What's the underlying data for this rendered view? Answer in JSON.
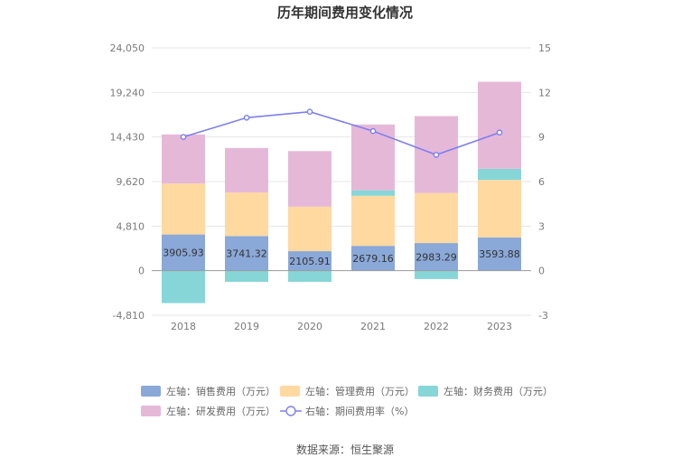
{
  "chart_data": {
    "type": "bar",
    "title": "历年期间费用变化情况",
    "categories": [
      "2018",
      "2019",
      "2020",
      "2021",
      "2022",
      "2023"
    ],
    "series": [
      {
        "name": "左轴：销售费用（万元）",
        "axis": "left",
        "kind": "stacked-bar",
        "color": "#8aa8d8",
        "values": [
          3905.93,
          3741.32,
          2105.91,
          2679.16,
          2983.29,
          3593.88
        ],
        "labels": [
          "3905.93",
          "3741.32",
          "2105.91",
          "2679.16",
          "2983.29",
          "3593.88"
        ]
      },
      {
        "name": "左轴：管理费用（万元）",
        "axis": "left",
        "kind": "stacked-bar",
        "color": "#ffd9a0",
        "values": [
          5500,
          4700,
          4800,
          5400,
          5400,
          6200
        ]
      },
      {
        "name": "左轴：财务费用（万元）",
        "axis": "left",
        "kind": "stacked-bar",
        "color": "#86d6d8",
        "values": [
          -3500,
          -1200,
          -1200,
          600,
          -900,
          1200
        ]
      },
      {
        "name": "左轴：研发费用（万元）",
        "axis": "left",
        "kind": "stacked-bar",
        "color": "#e6b8d8",
        "values": [
          5300,
          4800,
          6000,
          7100,
          8300,
          9400
        ]
      },
      {
        "name": "右轴：期间费用率（%）",
        "axis": "right",
        "kind": "line",
        "color": "#7b7ff0",
        "values": [
          9.0,
          10.3,
          10.7,
          9.4,
          7.8,
          9.3
        ]
      }
    ],
    "left_axis": {
      "ticks": [
        "24,050",
        "19,240",
        "14,430",
        "9,620",
        "4,810",
        "0",
        "-4,810"
      ],
      "ylim": [
        -4810,
        24050
      ]
    },
    "right_axis": {
      "ticks": [
        "15",
        "12",
        "9",
        "6",
        "3",
        "0",
        "-3"
      ],
      "ylim": [
        -3,
        15
      ]
    },
    "grid": true,
    "legend_position": "bottom"
  },
  "source_text": "数据来源：恒生聚源"
}
